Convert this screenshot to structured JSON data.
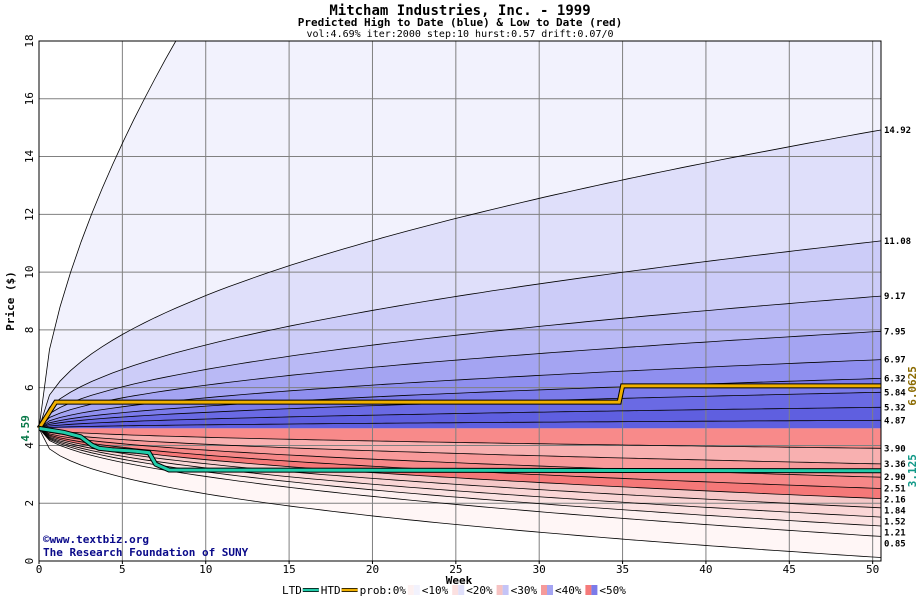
{
  "chart_data": {
    "type": "area",
    "title": "Mitcham Industries, Inc. - 1999",
    "subtitle": "Predicted High to Date (blue) &  Low to Date (red)",
    "params": "vol:4.69% iter:2000 step:10 hurst:0.57 drift:0.07/0",
    "xlabel": "Week",
    "ylabel": "Price ($)",
    "xlim": [
      0,
      50.5
    ],
    "ylim": [
      0,
      18
    ],
    "x_ticks": [
      0,
      5,
      10,
      15,
      20,
      25,
      30,
      35,
      40,
      45,
      50
    ],
    "y_ticks": [
      0,
      2,
      4,
      6,
      8,
      10,
      12,
      14,
      16,
      18
    ],
    "grid": true,
    "start_price": 4.59,
    "start_label": "4.59",
    "high_levels": [
      14.92,
      11.08,
      9.17,
      7.95,
      6.97,
      6.32,
      5.84,
      5.32,
      4.87
    ],
    "low_levels": [
      3.9,
      3.36,
      2.9,
      2.51,
      2.16,
      1.84,
      1.52,
      1.21,
      0.85
    ],
    "right_labels": [
      "14.92",
      "11.08",
      "9.17",
      "7.95",
      "6.97",
      "6.32",
      "5.84",
      "5.32",
      "4.87",
      "3.90",
      "3.36",
      "2.90",
      "2.51",
      "2.16",
      "1.84",
      "1.52",
      "1.21",
      "0.85"
    ],
    "outer_high_curve_end": 18,
    "outer_low_curve_end": 0.12,
    "series": [
      {
        "name": "HTD",
        "color": "#f0b000",
        "x": [
          0,
          1,
          34.8,
          35,
          50.5
        ],
        "y": [
          4.59,
          5.5,
          5.5,
          6.06,
          6.06
        ],
        "final_label": "6.0625"
      },
      {
        "name": "LTD",
        "color": "#22ccaa",
        "x": [
          0,
          1.5,
          2.5,
          3.2,
          3.6,
          4.4,
          5.8,
          6.6,
          7.0,
          7.8,
          50.5
        ],
        "y": [
          4.59,
          4.45,
          4.3,
          4.0,
          3.9,
          3.85,
          3.8,
          3.75,
          3.35,
          3.15,
          3.125
        ],
        "final_label": "3.125"
      }
    ],
    "colors": {
      "high_bands": [
        "#f2f2fd",
        "#dfdffa",
        "#ccccf8",
        "#b9b9f5",
        "#a4a4f2",
        "#8f8fef",
        "#7b7bea",
        "#6a6ae4",
        "#5f5fe0"
      ],
      "low_bands": [
        "#f8b0b0",
        "#f89a9a",
        "#f68888",
        "#f57878",
        "#f5c8c8",
        "#fad6d6",
        "#fbe2e2",
        "#fdf0f0",
        "#fff6f6"
      ],
      "grid": "#808080",
      "title_blue": "#0a0a8a",
      "htd_label": "#8a6a00",
      "ltd_label": "#119988"
    },
    "footer": {
      "copyright": "©www.textbiz.org",
      "org": "The Research Foundation of SUNY"
    },
    "legend": {
      "placement": "bottom",
      "items": [
        {
          "label": "LTD",
          "kind": "line",
          "color": "#22ccaa"
        },
        {
          "label": "HTD",
          "kind": "line",
          "color": "#f0b000"
        },
        {
          "label": "prob:0%",
          "kind": "text"
        },
        {
          "label": "<10%",
          "kind": "swatch",
          "colors": [
            "#fdf0f0",
            "#f2f2fd"
          ]
        },
        {
          "label": "<20%",
          "kind": "swatch",
          "colors": [
            "#fbe0e0",
            "#dfdffa"
          ]
        },
        {
          "label": "<30%",
          "kind": "swatch",
          "colors": [
            "#f6c2c2",
            "#c4c4f7"
          ]
        },
        {
          "label": "<40%",
          "kind": "swatch",
          "colors": [
            "#f59a9a",
            "#a4a4f2"
          ]
        },
        {
          "label": "<50%",
          "kind": "swatch",
          "colors": [
            "#f57a7a",
            "#7b7bea"
          ]
        }
      ]
    }
  }
}
